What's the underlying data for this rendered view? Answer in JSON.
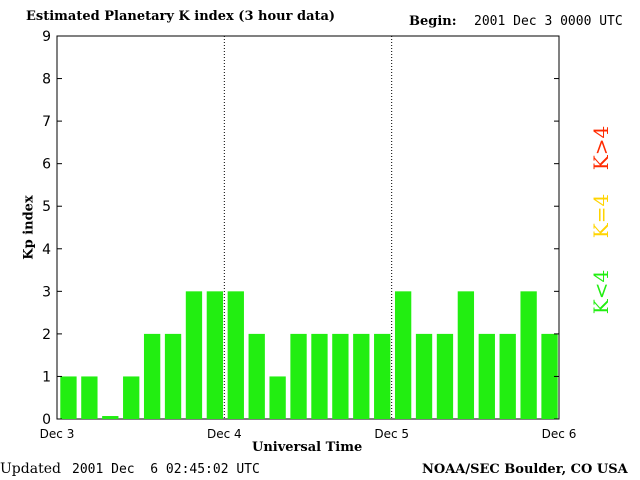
{
  "header": {
    "title": "Estimated Planetary K index (3 hour data)",
    "begin_label": "Begin:",
    "begin_value": "2001 Dec 3 0000 UTC"
  },
  "footer": {
    "updated_label": "Updated",
    "updated_value": "2001 Dec  6 02:45:02 UTC",
    "credit": "NOAA/SEC Boulder, CO USA"
  },
  "legend": [
    {
      "label": "K>4",
      "color": "#ff2a00"
    },
    {
      "label": "K=4",
      "color": "#ffd400"
    },
    {
      "label": "K<4",
      "color": "#22ee11"
    }
  ],
  "chart_data": {
    "type": "bar",
    "ylabel": "Kp index",
    "xlabel": "Universal Time",
    "ylim": [
      0,
      9
    ],
    "yticks": [
      0,
      1,
      2,
      3,
      4,
      5,
      6,
      7,
      8,
      9
    ],
    "x_tick_labels": [
      "Dec 3",
      "Dec 4",
      "Dec 5",
      "Dec 6"
    ],
    "day_dividers_at": [
      "Dec 4",
      "Dec 5"
    ],
    "bar_color": "#22ee11",
    "values": [
      1,
      1,
      0.07,
      1,
      2,
      2,
      3,
      3,
      3,
      2,
      1,
      2,
      2,
      2,
      2,
      2,
      3,
      2,
      2,
      3,
      2,
      2,
      3,
      2
    ]
  }
}
